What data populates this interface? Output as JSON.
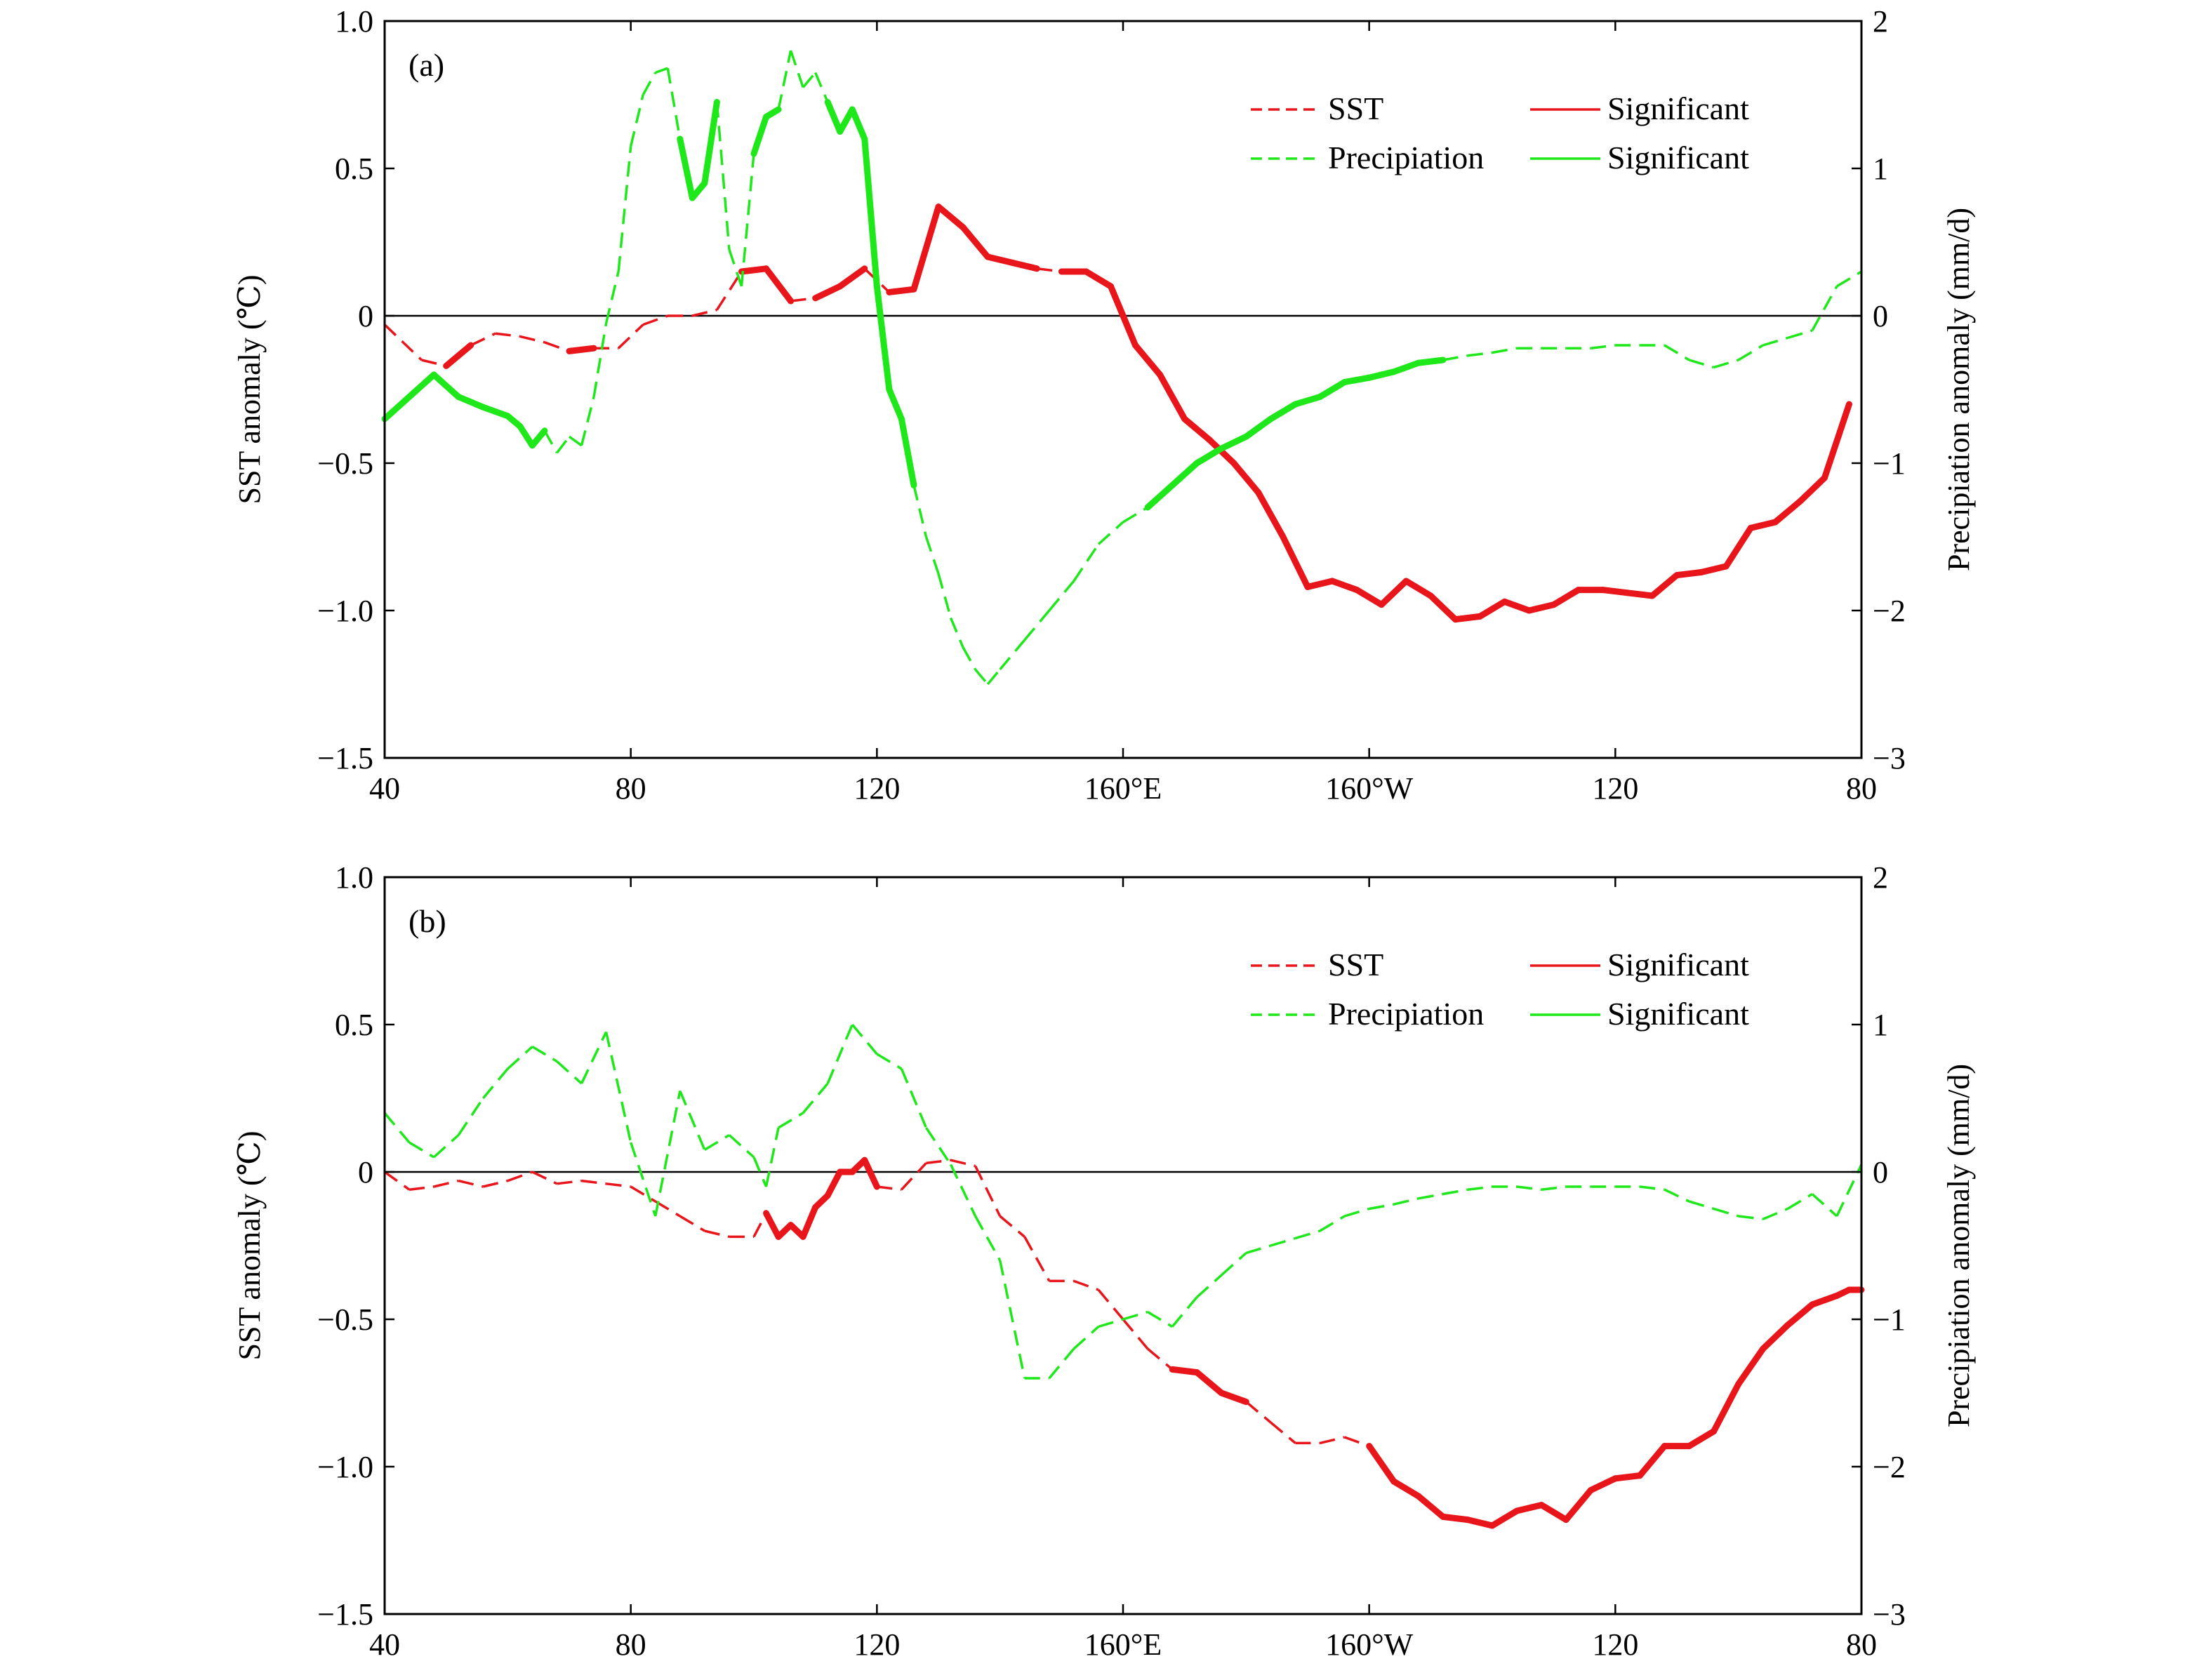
{
  "colors": {
    "sst": "#e8151b",
    "precipitation": "#1ee81a",
    "axis": "#000000"
  },
  "x_tick_labels": [
    "40",
    "80",
    "120",
    "160°E",
    "160°W",
    "120",
    "80"
  ],
  "y_left_ticks": [
    "1.0",
    "0.5",
    "0",
    "−0.5",
    "−1.0",
    "−1.5"
  ],
  "y_right_ticks": [
    "2",
    "1",
    "0",
    "−1",
    "−2",
    "−3"
  ],
  "y_left_label": "SST anomaly (℃)",
  "y_right_label": "Precipiation anomaly (mm/d)",
  "legend": {
    "sst": "SST",
    "sst_significant": "Significant",
    "precipitation": "Precipiation",
    "precipitation_significant": "Significant"
  },
  "chart_data": [
    {
      "type": "line",
      "panel_label": "(a)",
      "x_unit": "degrees longitude (40°E to 80°W, 0–240 from 40°E)",
      "xlim": [
        0,
        240
      ],
      "ylim_left": [
        -1.5,
        1.0
      ],
      "ylim_right": [
        -3,
        2
      ],
      "series": [
        {
          "name": "SST",
          "axis": "left",
          "x": [
            0,
            6,
            10,
            14,
            18,
            22,
            26,
            30,
            34,
            38,
            42,
            46,
            50,
            54,
            58,
            62,
            66,
            70,
            74,
            78,
            82,
            86,
            90,
            94,
            98,
            102,
            106,
            110,
            114,
            118,
            122,
            126,
            130,
            134,
            138,
            142,
            146,
            150,
            154,
            158,
            162,
            166,
            170,
            174,
            178,
            182,
            186,
            190,
            194,
            198,
            202,
            206,
            210,
            214,
            218,
            222,
            226,
            230,
            234,
            238
          ],
          "y": [
            -0.03,
            -0.15,
            -0.17,
            -0.1,
            -0.06,
            -0.07,
            -0.09,
            -0.12,
            -0.11,
            -0.11,
            -0.03,
            0.0,
            0.0,
            0.02,
            0.15,
            0.16,
            0.05,
            0.06,
            0.1,
            0.16,
            0.08,
            0.09,
            0.37,
            0.3,
            0.2,
            0.18,
            0.16,
            0.15,
            0.15,
            0.1,
            -0.1,
            -0.2,
            -0.35,
            -0.42,
            -0.5,
            -0.6,
            -0.75,
            -0.92,
            -0.9,
            -0.93,
            -0.98,
            -0.9,
            -0.95,
            -1.03,
            -1.02,
            -0.97,
            -1.0,
            -0.98,
            -0.93,
            -0.93,
            -0.94,
            -0.95,
            -0.88,
            -0.87,
            -0.85,
            -0.72,
            -0.7,
            -0.63,
            -0.55,
            -0.3
          ],
          "significant_ranges": [
            [
              10,
              12
            ],
            [
              30,
              34
            ],
            [
              58,
              64
            ],
            [
              72,
              78
            ],
            [
              82,
              104
            ],
            [
              110,
              250
            ],
            [
              124,
              190
            ],
            [
              190,
              236
            ]
          ]
        },
        {
          "name": "Precipitation",
          "axis": "right",
          "x": [
            0,
            4,
            8,
            12,
            16,
            20,
            22,
            24,
            26,
            28,
            30,
            32,
            34,
            36,
            38,
            40,
            42,
            44,
            46,
            48,
            50,
            52,
            54,
            56,
            58,
            60,
            62,
            64,
            66,
            68,
            70,
            72,
            74,
            76,
            78,
            80,
            82,
            84,
            86,
            88,
            90,
            92,
            94,
            96,
            98,
            100,
            104,
            108,
            112,
            116,
            120,
            124,
            128,
            132,
            136,
            140,
            144,
            148,
            152,
            156,
            160,
            164,
            168,
            172,
            176,
            180,
            184,
            188,
            192,
            196,
            200,
            204,
            208,
            212,
            216,
            220,
            224,
            228,
            232,
            236,
            240
          ],
          "y": [
            -0.7,
            -0.55,
            -0.4,
            -0.55,
            -0.62,
            -0.68,
            -0.75,
            -0.88,
            -0.78,
            -0.93,
            -0.82,
            -0.88,
            -0.55,
            -0.05,
            0.3,
            1.15,
            1.5,
            1.65,
            1.68,
            1.2,
            0.8,
            0.9,
            1.45,
            0.45,
            0.2,
            1.1,
            1.35,
            1.4,
            1.8,
            1.55,
            1.65,
            1.45,
            1.25,
            1.4,
            1.2,
            0.2,
            -0.5,
            -0.7,
            -1.15,
            -1.5,
            -1.75,
            -2.05,
            -2.25,
            -2.4,
            -2.5,
            -2.4,
            -2.2,
            -2.0,
            -1.8,
            -1.55,
            -1.4,
            -1.3,
            -1.15,
            -1.0,
            -0.9,
            -0.82,
            -0.7,
            -0.6,
            -0.55,
            -0.45,
            -0.42,
            -0.38,
            -0.32,
            -0.3,
            -0.27,
            -0.25,
            -0.22,
            -0.22,
            -0.22,
            -0.22,
            -0.2,
            -0.2,
            -0.2,
            -0.3,
            -0.35,
            -0.3,
            -0.2,
            -0.15,
            -0.1,
            0.2,
            0.3
          ],
          "significant_ranges": [
            [
              0,
              26
            ],
            [
              48,
              54
            ],
            [
              60,
              64
            ],
            [
              72,
              86
            ],
            [
              124,
              170
            ]
          ]
        }
      ]
    },
    {
      "type": "line",
      "panel_label": "(b)",
      "x_unit": "degrees longitude (40°E to 80°W, 0–240 from 40°E)",
      "xlim": [
        0,
        240
      ],
      "ylim_left": [
        -1.5,
        1.0
      ],
      "ylim_right": [
        -3,
        2
      ],
      "series": [
        {
          "name": "SST",
          "axis": "left",
          "x": [
            0,
            4,
            8,
            12,
            16,
            20,
            24,
            28,
            32,
            36,
            40,
            44,
            48,
            52,
            56,
            60,
            62,
            64,
            66,
            68,
            70,
            72,
            74,
            76,
            78,
            80,
            84,
            88,
            92,
            96,
            100,
            104,
            108,
            112,
            116,
            120,
            124,
            128,
            132,
            136,
            140,
            144,
            148,
            152,
            156,
            160,
            164,
            168,
            172,
            176,
            180,
            184,
            188,
            192,
            196,
            200,
            204,
            208,
            212,
            216,
            220,
            224,
            228,
            232,
            236,
            238,
            240
          ],
          "y": [
            0.0,
            -0.06,
            -0.05,
            -0.03,
            -0.05,
            -0.03,
            0.0,
            -0.04,
            -0.03,
            -0.04,
            -0.05,
            -0.1,
            -0.15,
            -0.2,
            -0.22,
            -0.22,
            -0.14,
            -0.22,
            -0.18,
            -0.22,
            -0.12,
            -0.08,
            0.0,
            0.0,
            0.04,
            -0.05,
            -0.06,
            0.03,
            0.04,
            0.02,
            -0.15,
            -0.22,
            -0.37,
            -0.37,
            -0.4,
            -0.5,
            -0.6,
            -0.67,
            -0.68,
            -0.75,
            -0.78,
            -0.85,
            -0.92,
            -0.92,
            -0.9,
            -0.93,
            -1.05,
            -1.1,
            -1.17,
            -1.18,
            -1.2,
            -1.15,
            -1.13,
            -1.18,
            -1.08,
            -1.04,
            -1.03,
            -0.93,
            -0.93,
            -0.88,
            -0.72,
            -0.6,
            -0.52,
            -0.45,
            -0.42,
            -0.4,
            -0.4
          ],
          "significant_ranges": [
            [
              62,
              80
            ],
            [
              128,
              138
            ],
            [
              160,
              240
            ]
          ]
        },
        {
          "name": "Precipitation",
          "axis": "right",
          "x": [
            0,
            4,
            8,
            12,
            16,
            20,
            24,
            28,
            32,
            36,
            40,
            44,
            48,
            52,
            56,
            60,
            62,
            64,
            68,
            72,
            76,
            80,
            84,
            88,
            92,
            96,
            100,
            104,
            108,
            112,
            116,
            120,
            124,
            128,
            132,
            136,
            140,
            144,
            148,
            152,
            156,
            160,
            164,
            168,
            172,
            176,
            180,
            184,
            188,
            192,
            196,
            200,
            204,
            208,
            212,
            216,
            220,
            224,
            228,
            232,
            236,
            240
          ],
          "y": [
            0.4,
            0.2,
            0.1,
            0.25,
            0.5,
            0.7,
            0.85,
            0.75,
            0.6,
            0.95,
            0.2,
            -0.3,
            0.55,
            0.15,
            0.25,
            0.1,
            -0.1,
            0.3,
            0.4,
            0.6,
            1.0,
            0.8,
            0.7,
            0.3,
            0.05,
            -0.3,
            -0.6,
            -1.4,
            -1.4,
            -1.2,
            -1.05,
            -1.0,
            -0.95,
            -1.05,
            -0.85,
            -0.7,
            -0.55,
            -0.5,
            -0.45,
            -0.4,
            -0.3,
            -0.25,
            -0.22,
            -0.18,
            -0.15,
            -0.12,
            -0.1,
            -0.1,
            -0.12,
            -0.1,
            -0.1,
            -0.1,
            -0.1,
            -0.12,
            -0.2,
            -0.25,
            -0.3,
            -0.32,
            -0.25,
            -0.15,
            -0.3,
            0.05
          ],
          "significant_ranges": []
        }
      ]
    }
  ]
}
